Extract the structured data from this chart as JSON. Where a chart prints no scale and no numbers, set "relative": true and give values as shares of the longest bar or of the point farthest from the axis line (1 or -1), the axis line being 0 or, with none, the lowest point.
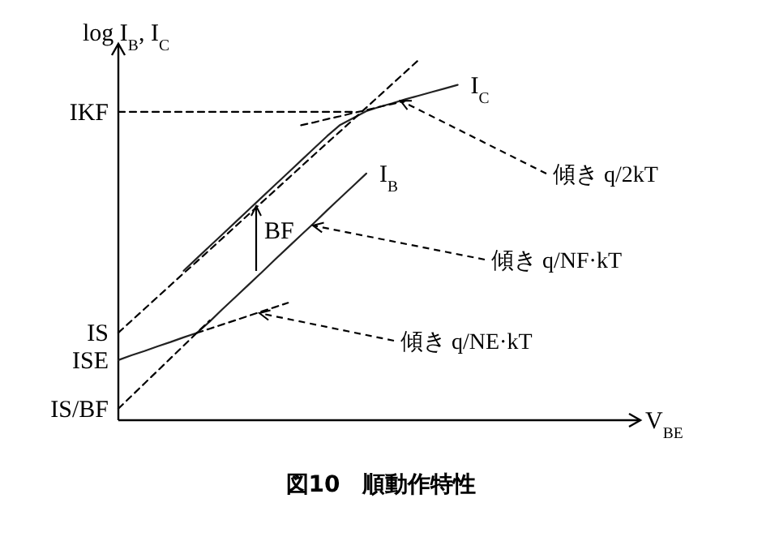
{
  "chart_data": {
    "type": "line",
    "relative": true,
    "title": "図10　順動作特性",
    "ylabel": "log I$_{B}$, I$_{C}$",
    "marker": "none",
    "categories": [
      null,
      null,
      null,
      null,
      null,
      null,
      null,
      null,
      null,
      null,
      null,
      null,
      null,
      null,
      null,
      null,
      null,
      null,
      null,
      null,
      null,
      null,
      null,
      null,
      null,
      null,
      null
    ],
    "series": [
      {
        "name": "I$_{C}$",
        "color": "#222222",
        "line_style": "solid",
        "values": [
          null,
          null,
          null,
          null,
          null,
          0.415,
          0.449,
          0.483,
          0.517,
          0.551,
          0.585,
          0.619,
          0.653,
          0.687,
          0.721,
          0.755,
          0.789,
          0.82,
          0.839,
          0.858,
          0.87,
          0.88,
          0.891,
          0.901,
          0.911,
          0.921,
          0.931
        ]
      },
      {
        "name": "I$_{B}$",
        "color": "#222222",
        "line_style": "solid",
        "values": [
          0.167,
          0.18,
          0.192,
          0.205,
          0.217,
          0.23,
          0.242,
          0.274,
          0.309,
          0.343,
          0.377,
          0.411,
          0.446,
          0.48,
          0.514,
          0.548,
          0.583,
          0.617,
          0.651,
          0.685,
          null,
          null,
          null,
          null,
          null,
          null,
          null
        ]
      },
      {
        "color": "#000000",
        "line_style": "dashed",
        "values": [
          0.243,
          0.276,
          0.309,
          0.342,
          0.375,
          0.408,
          0.44,
          0.473,
          0.506,
          0.539,
          0.572,
          0.605,
          0.638,
          0.671,
          0.704,
          0.737,
          0.77,
          0.802,
          0.835,
          0.868,
          0.901,
          0.934,
          0.967,
          1.0,
          null,
          null,
          null
        ]
      },
      {
        "color": "#000000",
        "line_style": "dashed",
        "values": [
          0.856,
          0.856,
          0.856,
          0.856,
          0.856,
          0.856,
          0.856,
          0.856,
          0.856,
          0.856,
          0.856,
          0.856,
          0.856,
          0.856,
          0.856,
          0.856,
          0.856,
          0.856,
          0.856,
          null,
          null,
          null,
          null,
          null,
          null,
          null,
          null
        ]
      },
      {
        "color": "#000000",
        "line_style": "dashed",
        "values": [
          null,
          null,
          null,
          null,
          null,
          null,
          null,
          null,
          null,
          null,
          null,
          null,
          null,
          null,
          0.819,
          0.827,
          0.836,
          0.844,
          0.853,
          0.861,
          0.87,
          0.878,
          0.887,
          null,
          null,
          null,
          null
        ]
      },
      {
        "color": "#000000",
        "line_style": "dashed",
        "values": [
          0.032,
          0.067,
          0.102,
          0.137,
          0.172,
          0.207,
          0.242,
          0.277,
          null,
          null,
          null,
          null,
          null,
          null,
          null,
          null,
          null,
          null,
          null,
          null,
          null,
          null,
          null,
          null,
          null,
          null,
          null
        ]
      },
      {
        "color": "#000000",
        "line_style": "dashed",
        "values": [
          null,
          null,
          null,
          null,
          null,
          null,
          0.242,
          0.254,
          0.266,
          0.278,
          0.29,
          0.302,
          0.314,
          0.326,
          null,
          null,
          null,
          null,
          null,
          null,
          null,
          null,
          null,
          null,
          null,
          null,
          null
        ]
      }
    ],
    "annotations": [
      "傾き q/2kT",
      "傾き q/NF·kT",
      "傾き q/NE·kT",
      "BF",
      "IKF",
      "IS",
      "ISE",
      "IS/BF",
      "V$_{BE}$"
    ]
  }
}
